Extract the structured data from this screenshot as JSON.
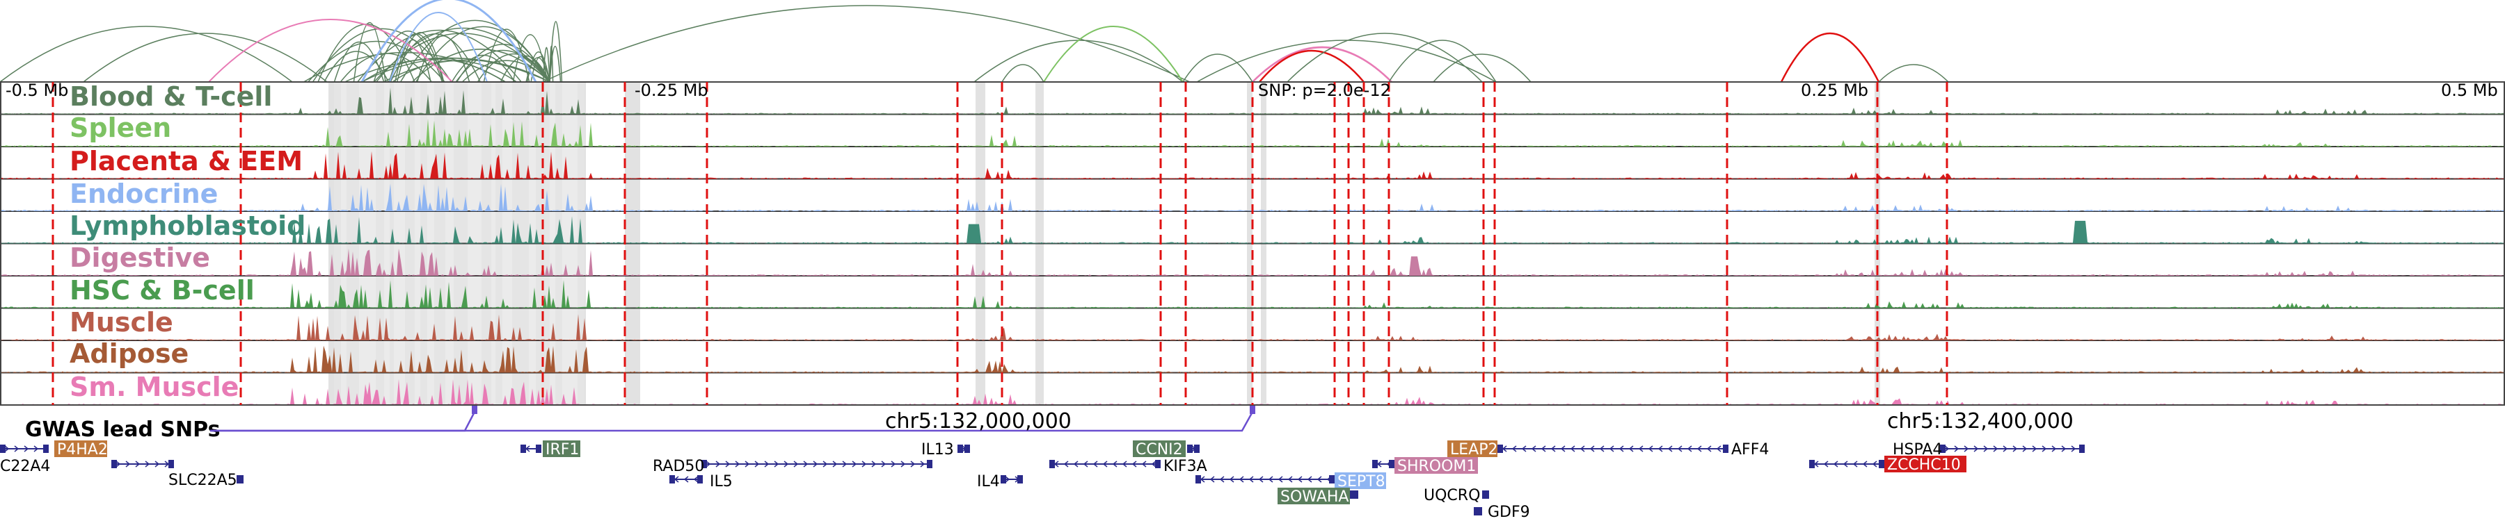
{
  "ruler": {
    "ticks": [
      "-0.5 Mb",
      "-0.25 Mb",
      "0.25 Mb",
      "0.5 Mb"
    ],
    "snp_label": "SNP: p=2.0e-12"
  },
  "tracks": [
    {
      "name": "Blood & T-cell",
      "color": "#5b7f5e"
    },
    {
      "name": "Spleen",
      "color": "#7dc263"
    },
    {
      "name": "Placenta & EEM",
      "color": "#d41c1c"
    },
    {
      "name": "Endocrine",
      "color": "#8fb5f2"
    },
    {
      "name": "Lymphoblastoid",
      "color": "#3e8c78"
    },
    {
      "name": "Digestive",
      "color": "#c77da2"
    },
    {
      "name": "HSC & B-cell",
      "color": "#4a9c4f"
    },
    {
      "name": "Muscle",
      "color": "#b85c4a"
    },
    {
      "name": "Adipose",
      "color": "#a55a35"
    },
    {
      "name": "Sm. Muscle",
      "color": "#e87bb5"
    }
  ],
  "gwas": {
    "label": "GWAS lead SNPs",
    "color": "#6a4fd0"
  },
  "coords": {
    "left": "chr5:132,000,000",
    "right": "chr5:132,400,000"
  },
  "genes": {
    "c22a4": "C22A4",
    "p4ha2": "P4HA2",
    "slc22a5": "SLC22A5",
    "irf1": "IRF1",
    "rad50": "RAD50",
    "il5": "IL5",
    "il13": "IL13",
    "il4": "IL4",
    "ccni2": "CCNI2",
    "kif3a": "KIF3A",
    "sept8": "SEPT8",
    "sowaha": "SOWAHA",
    "shroom1": "SHROOM1",
    "leap2": "LEAP2",
    "uqcrq": "UQCRQ",
    "gdf9": "GDF9",
    "aff4": "AFF4",
    "hspa4": "HSPA4",
    "zcchc10": "ZCCHC10"
  },
  "tag_colors": {
    "p4ha2": "#c0783a",
    "irf1": "#5b7f5e",
    "ccni2": "#5b7f5e",
    "sept8": "#8fb5f2",
    "sowaha": "#5b7f5e",
    "shroom1": "#c77da2",
    "leap2": "#c0783a",
    "zcchc10": "#d41c1c"
  },
  "colors": {
    "gene_body": "#2a2a8a",
    "red_line": "#e01010",
    "grey_band": "#d9d9d9"
  }
}
